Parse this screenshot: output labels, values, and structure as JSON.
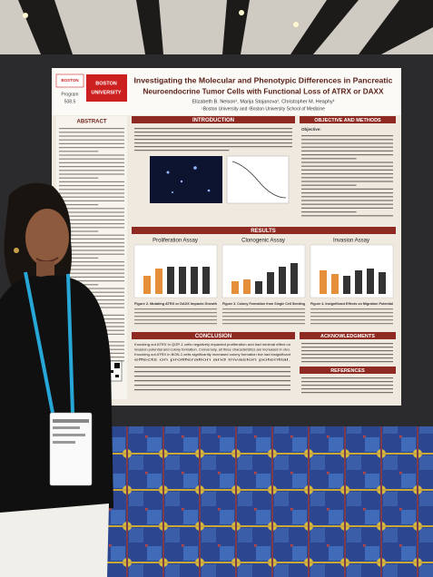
{
  "poster": {
    "logo": [
      "BOSTON",
      "UNIVERSITY"
    ],
    "program": [
      "Program",
      "508.5"
    ],
    "title": [
      "Investigating the Molecular and Phenotypic Differences in Pancreatic",
      "Neuroendocrine Tumor Cells with Functional Loss of ATRX or DAXX"
    ],
    "authors": "Elizabeth B. Nelson¹, Marija Stojanova¹, Christopher M. Heaphy¹",
    "affiliations": "¹Boston University and ¹Boston University School of Medicine",
    "sections": {
      "abstract": "ABSTRACT",
      "introduction": "INTRODUCTION",
      "objective": "OBJECTIVE AND METHODS",
      "results": "RESULTS",
      "conclusion": "CONCLUSION",
      "acknowledgments": "ACKNOWLEDGMENTS",
      "references": "REFERENCES"
    },
    "chart_titles": [
      "Proliferation Assay",
      "Clonogenic Assay",
      "Invasion Assay"
    ],
    "captions": [
      "Figure 2. Mutating ATRX or DAXX Impacts Growth",
      "Figure 3. Colony Formation from Single Cell Seeding",
      "Figure 4. Insignificant Effects on Migration Potential"
    ],
    "conclusion_bullets": [
      "Knocking out ATRX in QGP-1 cells negatively impacted proliferation and had minimal effect on",
      "invasion potential and colony formation. Conversely, all three characteristics are increased in vivo.",
      "Knocking out ATRX in BON-1 cells significantly increased colony formation but had insignificant",
      "effects on proliferation and invasion potential."
    ],
    "objective_heading": "Objective:"
  }
}
